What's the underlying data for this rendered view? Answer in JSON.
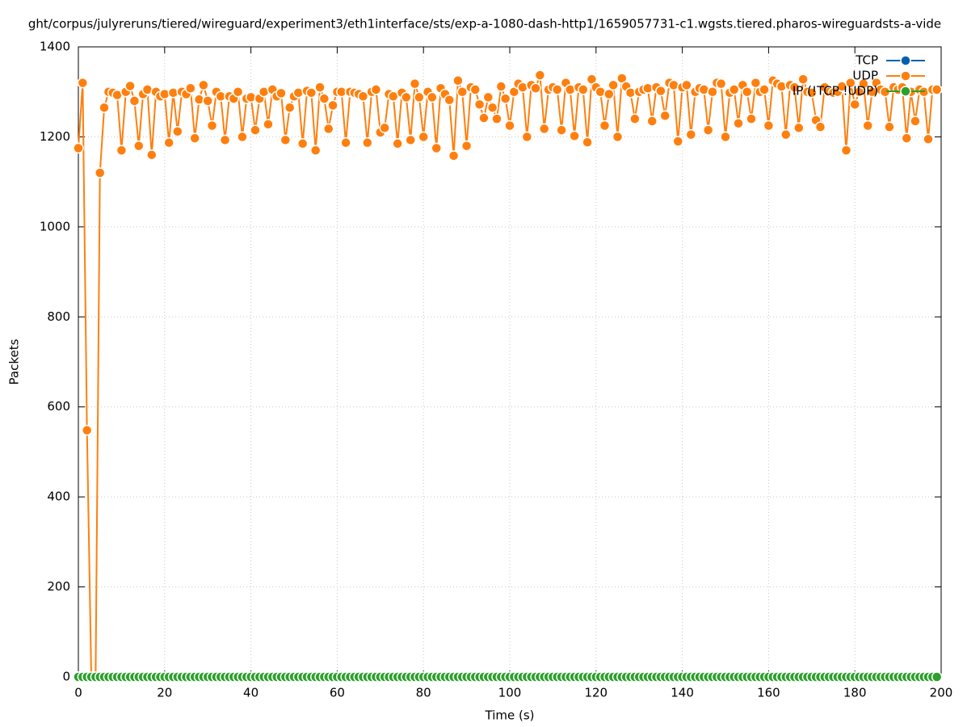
{
  "chart_data": {
    "type": "line",
    "title": "ght/corpus/julyreruns/tiered/wireguard/experiment3/eth1interface/sts/exp-a-1080-dash-http1/1659057731-c1.wgsts.tiered.pharos-wireguardsts-a-vide",
    "x_label": "Time (s)",
    "y_label": "Packets",
    "xlim": [
      0,
      200
    ],
    "xticks": [
      0,
      20,
      40,
      60,
      80,
      100,
      120,
      140,
      160,
      180,
      200
    ],
    "ylim": [
      0,
      1400
    ],
    "yticks": [
      0,
      200,
      400,
      600,
      800,
      1000,
      1200,
      1400
    ],
    "grid": true,
    "legend": "top right",
    "x": [
      0,
      1,
      2,
      3,
      4,
      5,
      6,
      7,
      8,
      9,
      10,
      11,
      12,
      13,
      14,
      15,
      16,
      17,
      18,
      19,
      20,
      21,
      22,
      23,
      24,
      25,
      26,
      27,
      28,
      29,
      30,
      31,
      32,
      33,
      34,
      35,
      36,
      37,
      38,
      39,
      40,
      41,
      42,
      43,
      44,
      45,
      46,
      47,
      48,
      49,
      50,
      51,
      52,
      53,
      54,
      55,
      56,
      57,
      58,
      59,
      60,
      61,
      62,
      63,
      64,
      65,
      66,
      67,
      68,
      69,
      70,
      71,
      72,
      73,
      74,
      75,
      76,
      77,
      78,
      79,
      80,
      81,
      82,
      83,
      84,
      85,
      86,
      87,
      88,
      89,
      90,
      91,
      92,
      93,
      94,
      95,
      96,
      97,
      98,
      99,
      100,
      101,
      102,
      103,
      104,
      105,
      106,
      107,
      108,
      109,
      110,
      111,
      112,
      113,
      114,
      115,
      116,
      117,
      118,
      119,
      120,
      121,
      122,
      123,
      124,
      125,
      126,
      127,
      128,
      129,
      130,
      131,
      132,
      133,
      134,
      135,
      136,
      137,
      138,
      139,
      140,
      141,
      142,
      143,
      144,
      145,
      146,
      147,
      148,
      149,
      150,
      151,
      152,
      153,
      154,
      155,
      156,
      157,
      158,
      159,
      160,
      161,
      162,
      163,
      164,
      165,
      166,
      167,
      168,
      169,
      170,
      171,
      172,
      173,
      174,
      175,
      176,
      177,
      178,
      179,
      180,
      181,
      182,
      183,
      184,
      185,
      186,
      187,
      188,
      189,
      190,
      191,
      192,
      193,
      194,
      195,
      196,
      197,
      198,
      199
    ],
    "series": [
      {
        "name": "TCP",
        "color": "#0060ad",
        "values": [
          0,
          0,
          0,
          0,
          0,
          0,
          0,
          0,
          0,
          0,
          0,
          0,
          0,
          0,
          0,
          0,
          0,
          0,
          0,
          0,
          0,
          0,
          0,
          0,
          0,
          0,
          0,
          0,
          0,
          0,
          0,
          0,
          0,
          0,
          0,
          0,
          0,
          0,
          0,
          0,
          0,
          0,
          0,
          0,
          0,
          0,
          0,
          0,
          0,
          0,
          0,
          0,
          0,
          0,
          0,
          0,
          0,
          0,
          0,
          0,
          0,
          0,
          0,
          0,
          0,
          0,
          0,
          0,
          0,
          0,
          0,
          0,
          0,
          0,
          0,
          0,
          0,
          0,
          0,
          0,
          0,
          0,
          0,
          0,
          0,
          0,
          0,
          0,
          0,
          0,
          0,
          0,
          0,
          0,
          0,
          0,
          0,
          0,
          0,
          0,
          0,
          0,
          0,
          0,
          0,
          0,
          0,
          0,
          0,
          0,
          0,
          0,
          0,
          0,
          0,
          0,
          0,
          0,
          0,
          0,
          0,
          0,
          0,
          0,
          0,
          0,
          0,
          0,
          0,
          0,
          0,
          0,
          0,
          0,
          0,
          0,
          0,
          0,
          0,
          0,
          0,
          0,
          0,
          0,
          0,
          0,
          0,
          0,
          0,
          0,
          0,
          0,
          0,
          0,
          0,
          0,
          0,
          0,
          0,
          0,
          0,
          0,
          0,
          0,
          0,
          0,
          0,
          0,
          0,
          0,
          0,
          0,
          0,
          0,
          0,
          0,
          0,
          0,
          0,
          0,
          0,
          0,
          0,
          0,
          0,
          0,
          0,
          0,
          0,
          0,
          0,
          0,
          0,
          0,
          0,
          0,
          0,
          0,
          0,
          0
        ]
      },
      {
        "name": "UDP",
        "color": "#ff7f0e",
        "values": [
          1175,
          1320,
          548,
          0,
          0,
          1120,
          1265,
          1300,
          1298,
          1293,
          1170,
          1300,
          1313,
          1280,
          1180,
          1295,
          1305,
          1160,
          1300,
          1290,
          1295,
          1187,
          1298,
          1212,
          1300,
          1295,
          1308,
          1197,
          1283,
          1315,
          1280,
          1225,
          1300,
          1290,
          1193,
          1290,
          1285,
          1300,
          1200,
          1285,
          1288,
          1215,
          1285,
          1300,
          1228,
          1305,
          1290,
          1297,
          1193,
          1265,
          1290,
          1298,
          1185,
          1302,
          1298,
          1170,
          1310,
          1285,
          1218,
          1270,
          1300,
          1300,
          1187,
          1300,
          1298,
          1295,
          1290,
          1187,
          1300,
          1305,
          1210,
          1220,
          1295,
          1290,
          1185,
          1298,
          1288,
          1193,
          1318,
          1288,
          1200,
          1300,
          1288,
          1175,
          1308,
          1295,
          1282,
          1158,
          1325,
          1300,
          1180,
          1310,
          1305,
          1272,
          1242,
          1288,
          1265,
          1240,
          1312,
          1285,
          1225,
          1300,
          1318,
          1310,
          1200,
          1315,
          1308,
          1337,
          1218,
          1305,
          1310,
          1305,
          1215,
          1320,
          1305,
          1202,
          1310,
          1305,
          1188,
          1328,
          1310,
          1300,
          1225,
          1295,
          1315,
          1200,
          1330,
          1312,
          1298,
          1240,
          1300,
          1305,
          1308,
          1235,
          1310,
          1302,
          1247,
          1320,
          1315,
          1190,
          1310,
          1315,
          1205,
          1300,
          1308,
          1305,
          1215,
          1300,
          1320,
          1318,
          1200,
          1298,
          1305,
          1230,
          1315,
          1300,
          1240,
          1320,
          1300,
          1305,
          1225,
          1325,
          1318,
          1312,
          1205,
          1315,
          1310,
          1220,
          1328,
          1300,
          1298,
          1237,
          1222,
          1310,
          1300,
          1298,
          1300,
          1312,
          1170,
          1320,
          1272,
          1300,
          1318,
          1225,
          1300,
          1320,
          1305,
          1300,
          1222,
          1310,
          1305,
          1310,
          1197,
          1300,
          1235,
          1305,
          1300,
          1195,
          1305,
          1305
        ]
      },
      {
        "name": "IP (!TCP !UDP)",
        "color": "#2ca02c",
        "values": [
          0,
          0,
          0,
          0,
          0,
          0,
          0,
          0,
          0,
          0,
          0,
          0,
          0,
          0,
          0,
          0,
          0,
          0,
          0,
          0,
          0,
          0,
          0,
          0,
          0,
          0,
          0,
          0,
          0,
          0,
          0,
          0,
          0,
          0,
          0,
          0,
          0,
          0,
          0,
          0,
          0,
          0,
          0,
          0,
          0,
          0,
          0,
          0,
          0,
          0,
          0,
          0,
          0,
          0,
          0,
          0,
          0,
          0,
          0,
          0,
          0,
          0,
          0,
          0,
          0,
          0,
          0,
          0,
          0,
          0,
          0,
          0,
          0,
          0,
          0,
          0,
          0,
          0,
          0,
          0,
          0,
          0,
          0,
          0,
          0,
          0,
          0,
          0,
          0,
          0,
          0,
          0,
          0,
          0,
          0,
          0,
          0,
          0,
          0,
          0,
          0,
          0,
          0,
          0,
          0,
          0,
          0,
          0,
          0,
          0,
          0,
          0,
          0,
          0,
          0,
          0,
          0,
          0,
          0,
          0,
          0,
          0,
          0,
          0,
          0,
          0,
          0,
          0,
          0,
          0,
          0,
          0,
          0,
          0,
          0,
          0,
          0,
          0,
          0,
          0,
          0,
          0,
          0,
          0,
          0,
          0,
          0,
          0,
          0,
          0,
          0,
          0,
          0,
          0,
          0,
          0,
          0,
          0,
          0,
          0,
          0,
          0,
          0,
          0,
          0,
          0,
          0,
          0,
          0,
          0,
          0,
          0,
          0,
          0,
          0,
          0,
          0,
          0,
          0,
          0,
          0,
          0,
          0,
          0,
          0,
          0,
          0,
          0,
          0,
          0,
          0,
          0,
          0,
          0,
          0,
          0,
          0,
          0,
          0,
          0
        ]
      }
    ]
  }
}
